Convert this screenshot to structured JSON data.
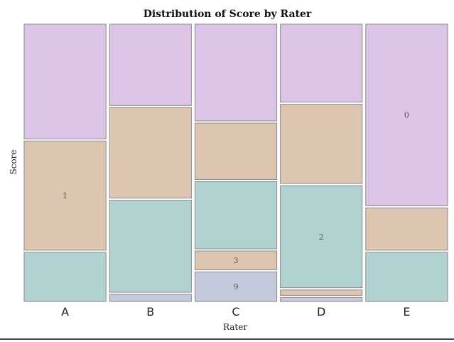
{
  "chart_data": {
    "type": "mosaic",
    "title": "Distribution of Score by Rater",
    "xlabel": "Rater",
    "ylabel": "Score",
    "categories": [
      "A",
      "B",
      "C",
      "D",
      "E"
    ],
    "column_widths": [
      0.2,
      0.2,
      0.2,
      0.2,
      0.2
    ],
    "score_levels": [
      "9",
      "2",
      "3",
      "1",
      "0"
    ],
    "score_colors": {
      "9": "#c5c9dc",
      "2": "#b2d2d1",
      "3": "#dcc6b2",
      "1": "#dcc6b2",
      "0": "#dcc4e6"
    },
    "columns": [
      {
        "rater": "A",
        "segments": [
          {
            "score": "9",
            "proportion": 0.0
          },
          {
            "score": "2",
            "proportion": 0.18
          },
          {
            "score": "1",
            "proportion": 0.4
          },
          {
            "score": "0",
            "proportion": 0.42
          }
        ]
      },
      {
        "rater": "B",
        "segments": [
          {
            "score": "9",
            "proportion": 0.026
          },
          {
            "score": "2",
            "proportion": 0.34
          },
          {
            "score": "1",
            "proportion": 0.334
          },
          {
            "score": "0",
            "proportion": 0.3
          }
        ]
      },
      {
        "rater": "C",
        "segments": [
          {
            "score": "9",
            "proportion": 0.11
          },
          {
            "score": "3",
            "proportion": 0.07
          },
          {
            "score": "2",
            "proportion": 0.25
          },
          {
            "score": "1",
            "proportion": 0.21
          },
          {
            "score": "0",
            "proportion": 0.36
          }
        ]
      },
      {
        "rater": "D",
        "segments": [
          {
            "score": "9",
            "proportion": 0.015
          },
          {
            "score": "3",
            "proportion": 0.02
          },
          {
            "score": "2",
            "proportion": 0.38
          },
          {
            "score": "1",
            "proportion": 0.295
          },
          {
            "score": "0",
            "proportion": 0.29
          }
        ]
      },
      {
        "rater": "E",
        "segments": [
          {
            "score": "9",
            "proportion": 0.0
          },
          {
            "score": "2",
            "proportion": 0.18
          },
          {
            "score": "1",
            "proportion": 0.155
          },
          {
            "score": "0",
            "proportion": 0.665
          }
        ]
      }
    ],
    "cell_labels": [
      {
        "rater": "A",
        "score": "1",
        "text": "1"
      },
      {
        "rater": "C",
        "score": "3",
        "text": "3"
      },
      {
        "rater": "C",
        "score": "9",
        "text": "9"
      },
      {
        "rater": "D",
        "score": "2",
        "text": "2"
      },
      {
        "rater": "E",
        "score": "0",
        "text": "0"
      }
    ]
  }
}
